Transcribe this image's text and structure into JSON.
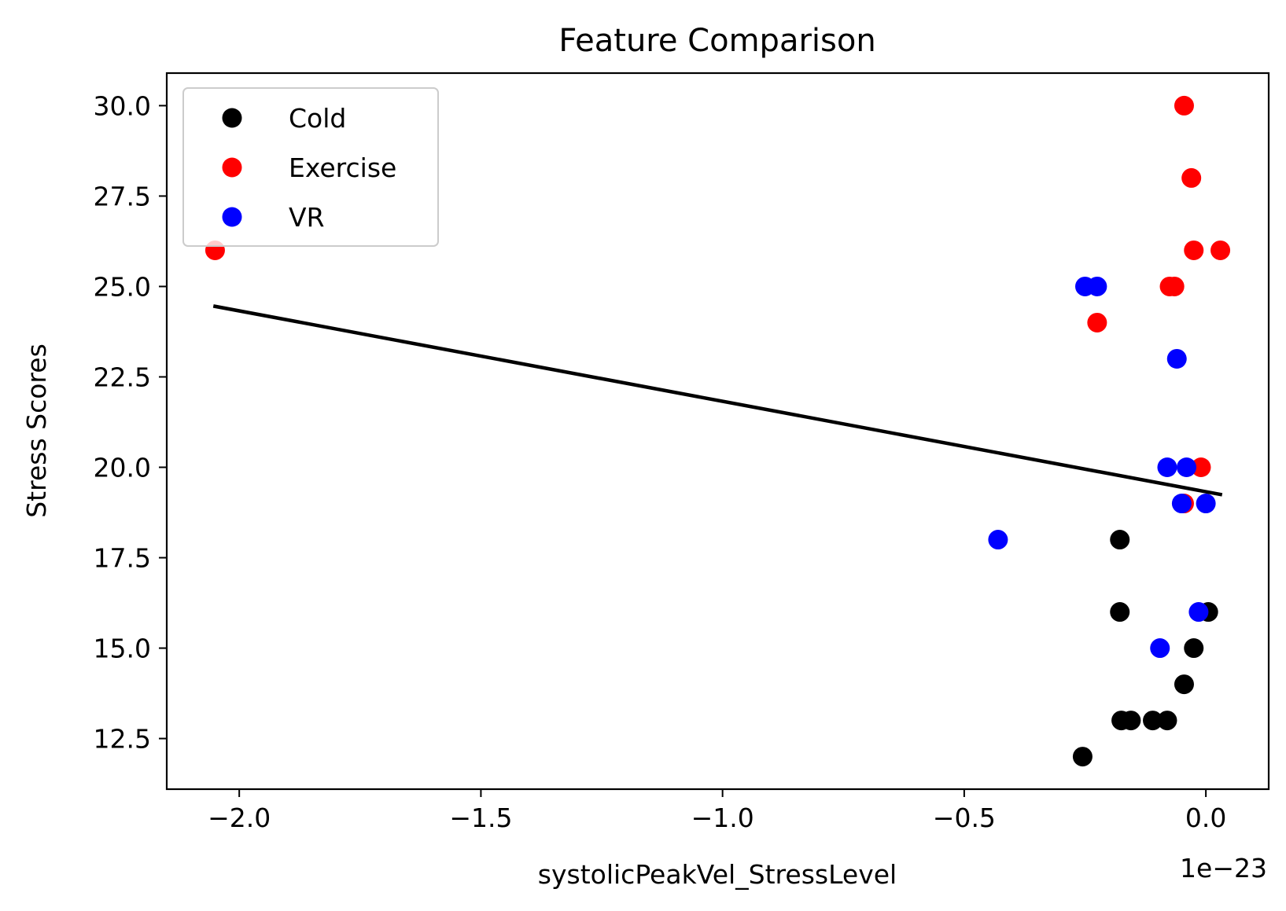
{
  "chart_data": {
    "type": "scatter",
    "title": "Feature Comparison",
    "xlabel": "systolicPeakVel_StressLevel",
    "ylabel": "Stress Scores",
    "x_offset_label": "1e−23",
    "xlim": [
      -2.15,
      0.13
    ],
    "ylim": [
      11.1,
      30.9
    ],
    "x_ticks": [
      -2.0,
      -1.5,
      -1.0,
      -0.5,
      0.0
    ],
    "x_tick_labels": [
      "−2.0",
      "−1.5",
      "−1.0",
      "−0.5",
      "0.0"
    ],
    "y_ticks": [
      12.5,
      15.0,
      17.5,
      20.0,
      22.5,
      25.0,
      27.5,
      30.0
    ],
    "y_tick_labels": [
      "12.5",
      "15.0",
      "17.5",
      "20.0",
      "22.5",
      "25.0",
      "27.5",
      "30.0"
    ],
    "grid": false,
    "legend_position": "top-left",
    "series": [
      {
        "name": "Cold",
        "color": "#000000",
        "points": [
          [
            -0.255,
            12
          ],
          [
            -0.175,
            13
          ],
          [
            -0.155,
            13
          ],
          [
            -0.11,
            13
          ],
          [
            -0.08,
            13
          ],
          [
            -0.045,
            14
          ],
          [
            -0.025,
            15
          ],
          [
            -0.178,
            16
          ],
          [
            0.005,
            16
          ],
          [
            -0.178,
            18
          ]
        ]
      },
      {
        "name": "Exercise",
        "color": "#ff0000",
        "points": [
          [
            -2.05,
            26
          ],
          [
            -0.045,
            30
          ],
          [
            -0.03,
            28
          ],
          [
            -0.025,
            26
          ],
          [
            0.03,
            26
          ],
          [
            -0.075,
            25
          ],
          [
            -0.065,
            25
          ],
          [
            -0.225,
            24
          ],
          [
            -0.01,
            20
          ],
          [
            -0.045,
            19
          ]
        ]
      },
      {
        "name": "VR",
        "color": "#0000ff",
        "points": [
          [
            -0.25,
            25
          ],
          [
            -0.225,
            25
          ],
          [
            -0.06,
            23
          ],
          [
            -0.08,
            20
          ],
          [
            -0.04,
            20
          ],
          [
            -0.05,
            19
          ],
          [
            0.0,
            19
          ],
          [
            -0.43,
            18
          ],
          [
            -0.015,
            16
          ],
          [
            -0.095,
            15
          ]
        ]
      }
    ],
    "trendline": {
      "color": "#000000",
      "x": [
        -2.05,
        0.03
      ],
      "y": [
        24.45,
        19.25
      ]
    }
  }
}
